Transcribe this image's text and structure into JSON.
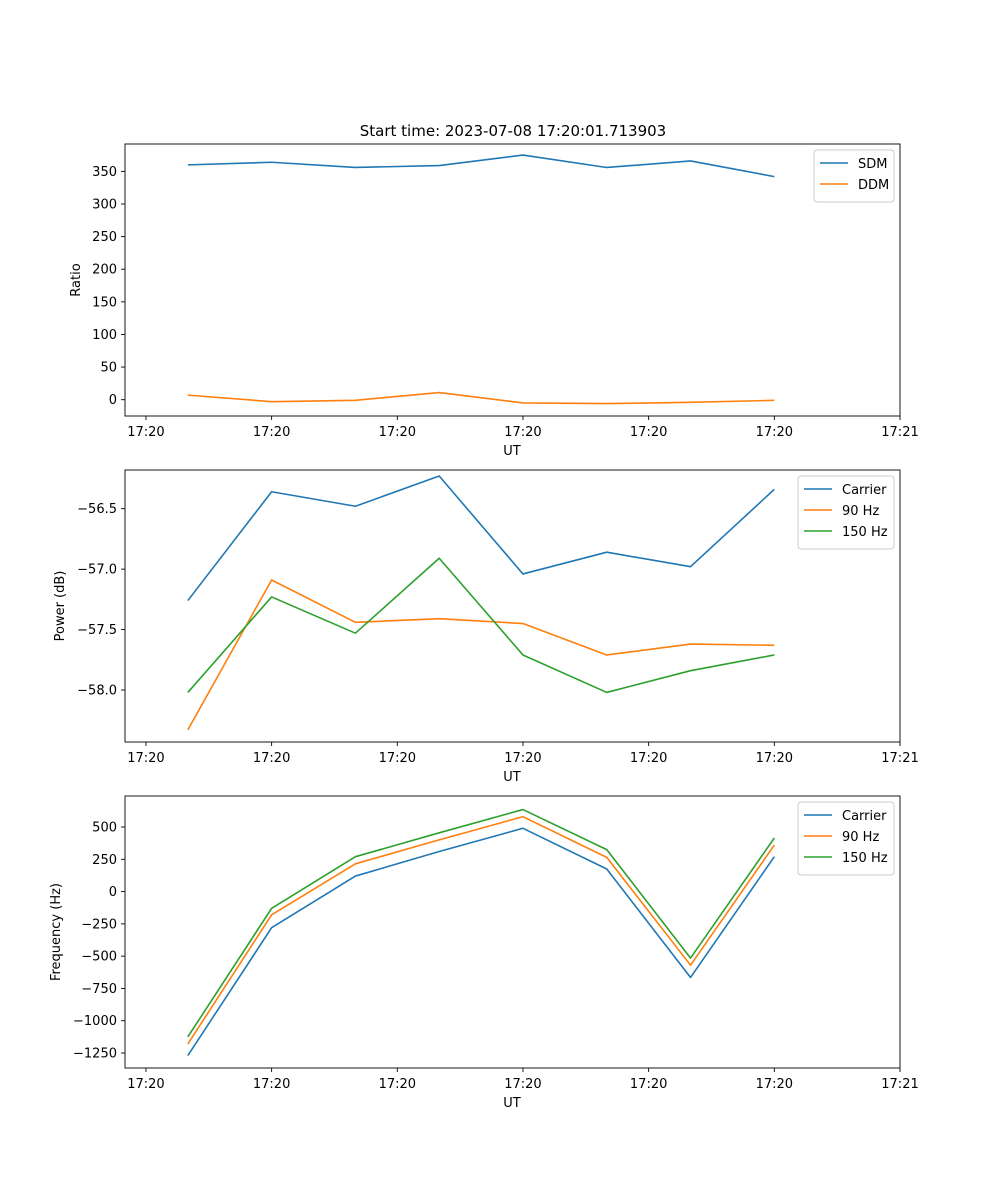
{
  "title": "Start time: 2023-07-08 17:20:01.713903",
  "colors": {
    "c0": "#1f77b4",
    "c1": "#ff7f0e",
    "c2": "#2ca02c"
  },
  "chart_data": [
    {
      "type": "line",
      "xlabel": "UT",
      "ylabel": "Ratio",
      "xlim": [
        -0.75,
        8.5
      ],
      "ylim": [
        -25,
        392
      ],
      "yticks": [
        0,
        50,
        100,
        150,
        200,
        250,
        300,
        350
      ],
      "ytick_labels": [
        "0",
        "50",
        "100",
        "150",
        "200",
        "250",
        "300",
        "350"
      ],
      "xticks": [
        -0.5,
        1,
        2.5,
        4,
        5.5,
        7,
        8.5
      ],
      "xtick_labels": [
        "17:20",
        "17:20",
        "17:20",
        "17:20",
        "17:20",
        "17:20",
        "17:21"
      ],
      "x": [
        0,
        1,
        2,
        3,
        4,
        5,
        6,
        7
      ],
      "legend_position": "top-right",
      "series": [
        {
          "name": "SDM",
          "color": "#1f77b4",
          "values": [
            360,
            364,
            356,
            359,
            375,
            356,
            366,
            342
          ]
        },
        {
          "name": "DDM",
          "color": "#ff7f0e",
          "values": [
            7,
            -3,
            -1,
            11,
            -5,
            -6,
            -4,
            -1
          ]
        }
      ]
    },
    {
      "type": "line",
      "xlabel": "UT",
      "ylabel": "Power (dB)",
      "xlim": [
        -0.75,
        8.5
      ],
      "ylim": [
        -58.43,
        -56.18
      ],
      "yticks": [
        -58.0,
        -57.5,
        -57.0,
        -56.5
      ],
      "ytick_labels": [
        "−58.0",
        "−57.5",
        "−57.0",
        "−56.5"
      ],
      "xticks": [
        -0.5,
        1,
        2.5,
        4,
        5.5,
        7,
        8.5
      ],
      "xtick_labels": [
        "17:20",
        "17:20",
        "17:20",
        "17:20",
        "17:20",
        "17:20",
        "17:21"
      ],
      "x": [
        0,
        1,
        2,
        3,
        4,
        5,
        6,
        7
      ],
      "legend_position": "top-right",
      "series": [
        {
          "name": "Carrier",
          "color": "#1f77b4",
          "values": [
            -57.26,
            -56.36,
            -56.48,
            -56.23,
            -57.04,
            -56.86,
            -56.98,
            -56.34
          ]
        },
        {
          "name": "90 Hz",
          "color": "#ff7f0e",
          "values": [
            -58.33,
            -57.09,
            -57.44,
            -57.41,
            -57.45,
            -57.71,
            -57.62,
            -57.63
          ]
        },
        {
          "name": "150 Hz",
          "color": "#2ca02c",
          "values": [
            -58.02,
            -57.23,
            -57.53,
            -56.91,
            -57.71,
            -58.02,
            -57.84,
            -57.71
          ]
        }
      ]
    },
    {
      "type": "line",
      "xlabel": "UT",
      "ylabel": "Frequency (Hz)",
      "xlim": [
        -0.75,
        8.5
      ],
      "ylim": [
        -1366,
        740
      ],
      "yticks": [
        -1250,
        -1000,
        -750,
        -500,
        -250,
        0,
        250,
        500
      ],
      "ytick_labels": [
        "−1250",
        "−1000",
        "−750",
        "−500",
        "−250",
        "0",
        "250",
        "500"
      ],
      "xticks": [
        -0.5,
        1,
        2.5,
        4,
        5.5,
        7,
        8.5
      ],
      "xtick_labels": [
        "17:20",
        "17:20",
        "17:20",
        "17:20",
        "17:20",
        "17:20",
        "17:21"
      ],
      "x": [
        0,
        1,
        2,
        3,
        4,
        5,
        6,
        7
      ],
      "legend_position": "top-right",
      "series": [
        {
          "name": "Carrier",
          "color": "#1f77b4",
          "values": [
            -1270,
            -280,
            120,
            310,
            490,
            175,
            -665,
            270
          ]
        },
        {
          "name": "90 Hz",
          "color": "#ff7f0e",
          "values": [
            -1180,
            -180,
            215,
            400,
            580,
            265,
            -570,
            360
          ]
        },
        {
          "name": "150 Hz",
          "color": "#2ca02c",
          "values": [
            -1125,
            -130,
            270,
            455,
            635,
            325,
            -515,
            415
          ]
        }
      ]
    }
  ]
}
